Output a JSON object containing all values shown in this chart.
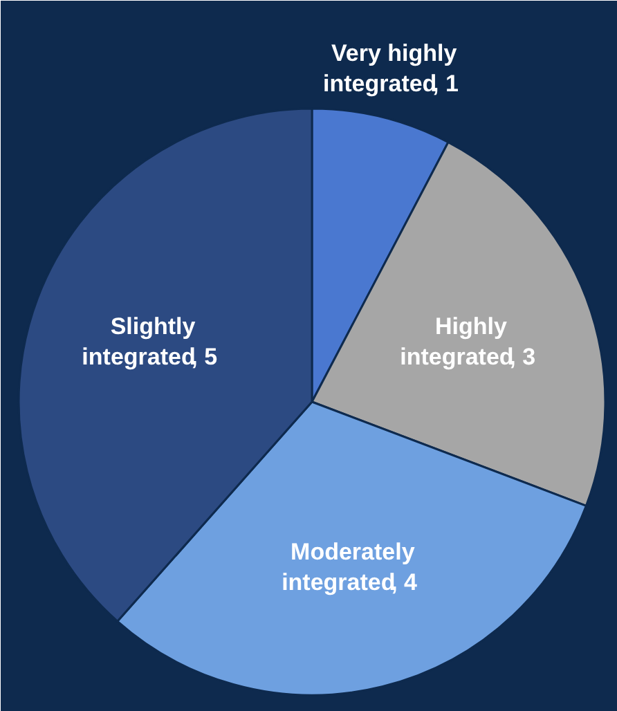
{
  "chart_data": {
    "type": "pie",
    "categories": [
      "Very highly integrated",
      "Highly integrated",
      "Moderately integrated",
      "Slightly integrated"
    ],
    "values": [
      1,
      3,
      4,
      5
    ],
    "colors": [
      "#4a78d0",
      "#a6a6a6",
      "#6ea0e0",
      "#2c4a82"
    ],
    "value_labels": [
      ", 1",
      ", 3",
      ", 4",
      ", 5"
    ]
  }
}
